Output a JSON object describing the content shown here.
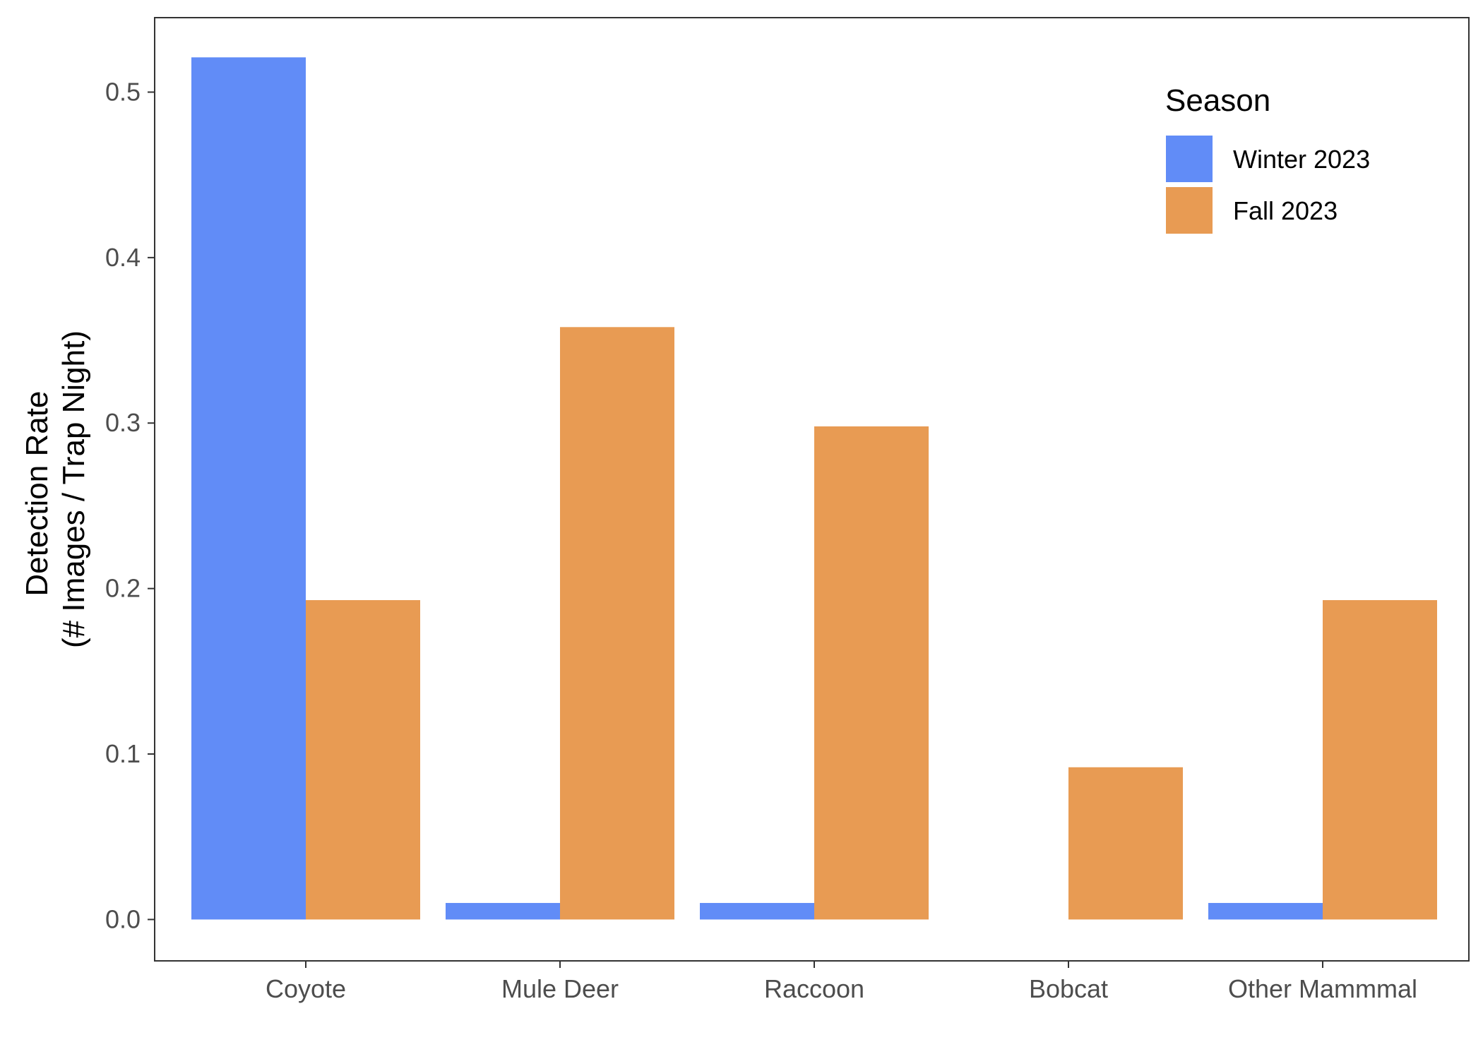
{
  "chart_data": {
    "type": "bar",
    "title": "",
    "xlabel": "",
    "ylabel_lines": [
      "Detection Rate",
      "(# Images / Trap Night)"
    ],
    "categories": [
      "Coyote",
      "Mule Deer",
      "Raccoon",
      "Bobcat",
      "Other Mammmal"
    ],
    "series": [
      {
        "name": "Winter 2023",
        "color": "#618cf7",
        "values": [
          0.521,
          0.01,
          0.01,
          0.0,
          0.01
        ]
      },
      {
        "name": "Fall 2023",
        "color": "#e89b53",
        "values": [
          0.193,
          0.358,
          0.298,
          0.092,
          0.193
        ]
      }
    ],
    "ylim": [
      -0.025,
      0.545
    ],
    "yticks": [
      "0.0",
      "0.1",
      "0.2",
      "0.3",
      "0.4",
      "0.5"
    ],
    "grid": false,
    "legend": {
      "title": "Season",
      "placement": "top-right"
    }
  }
}
